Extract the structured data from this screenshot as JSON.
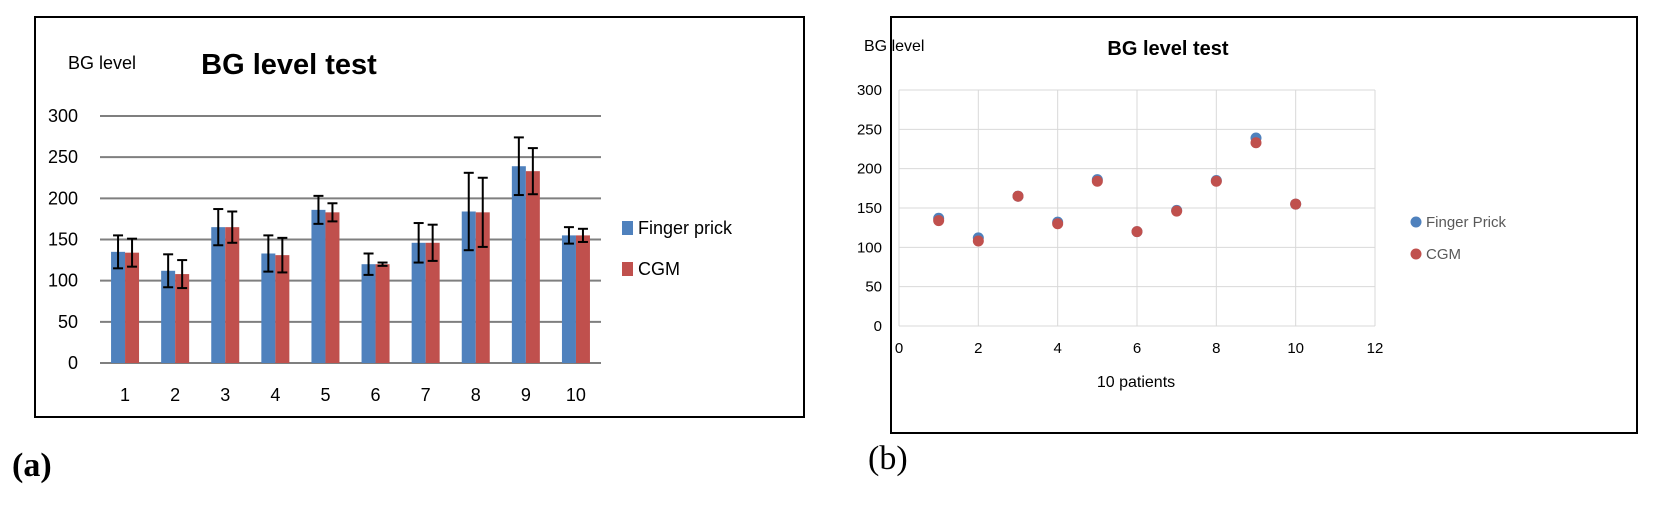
{
  "chart_data": [
    {
      "type": "bar",
      "title": "BG level test",
      "ylabel": "BG level",
      "xlabel": "",
      "ylim": [
        0,
        300
      ],
      "yticks": [
        0,
        50,
        100,
        150,
        200,
        250,
        300
      ],
      "categories": [
        "1",
        "2",
        "3",
        "4",
        "5",
        "6",
        "7",
        "8",
        "9",
        "10"
      ],
      "series": [
        {
          "name": "Finger prick",
          "color": "#4F81BD",
          "values": [
            135,
            112,
            165,
            133,
            186,
            120,
            146,
            184,
            239,
            155
          ],
          "errors": [
            20,
            20,
            22,
            22,
            17,
            13,
            24,
            47,
            35,
            10
          ]
        },
        {
          "name": "CGM",
          "color": "#C0504D",
          "values": [
            134,
            108,
            165,
            131,
            183,
            120,
            146,
            183,
            233,
            155
          ],
          "errors": [
            17,
            17,
            19,
            21,
            11,
            2,
            22,
            42,
            28,
            8
          ]
        }
      ],
      "legend": "right",
      "grid": true
    },
    {
      "type": "scatter",
      "title": "BG level test",
      "ylabel": "BG level",
      "xlabel": "10 patients",
      "xlim": [
        0,
        12
      ],
      "ylim": [
        0,
        300
      ],
      "xticks": [
        0,
        2,
        4,
        6,
        8,
        10,
        12
      ],
      "yticks": [
        0,
        50,
        100,
        150,
        200,
        250,
        300
      ],
      "series": [
        {
          "name": "Finger Prick",
          "color": "#4F81BD",
          "x": [
            1,
            2,
            3,
            4,
            5,
            6,
            7,
            8,
            9,
            10
          ],
          "y": [
            137,
            112,
            165,
            132,
            186,
            120,
            147,
            185,
            239,
            155
          ]
        },
        {
          "name": "CGM",
          "color": "#C0504D",
          "x": [
            1,
            2,
            3,
            4,
            5,
            6,
            7,
            8,
            9,
            10
          ],
          "y": [
            134,
            108,
            165,
            130,
            184,
            120,
            146,
            184,
            233,
            155
          ]
        }
      ],
      "legend": "right",
      "grid": true
    }
  ],
  "captions": {
    "a": "(a)",
    "b": "(b)"
  }
}
